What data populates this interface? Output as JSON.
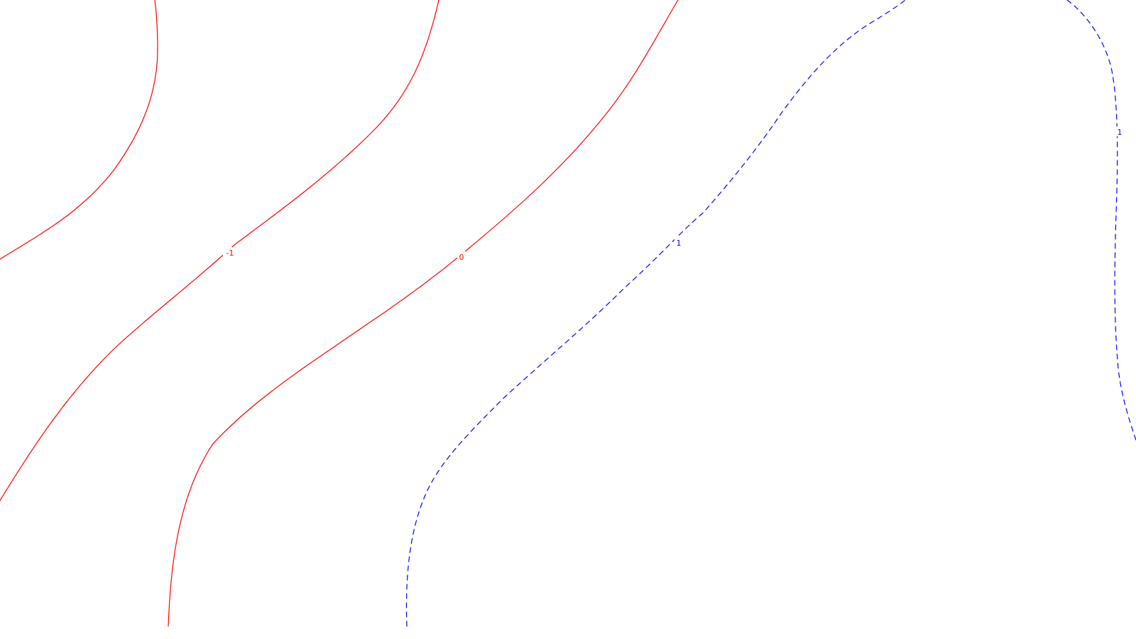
{
  "chart_data": {
    "type": "contour",
    "title": "",
    "xlabel": "",
    "ylabel": "",
    "grid": false,
    "legend": "none",
    "levels": [
      {
        "level": -1,
        "label": "-1",
        "color": "#ff0000",
        "style": "solid",
        "segments": 2
      },
      {
        "level": 0,
        "label": "0",
        "color": "#ff0000",
        "style": "solid",
        "segments": 1
      },
      {
        "level": 1,
        "label": "1",
        "color": "#0000ff",
        "style": "dashed",
        "segments": 2
      }
    ]
  }
}
